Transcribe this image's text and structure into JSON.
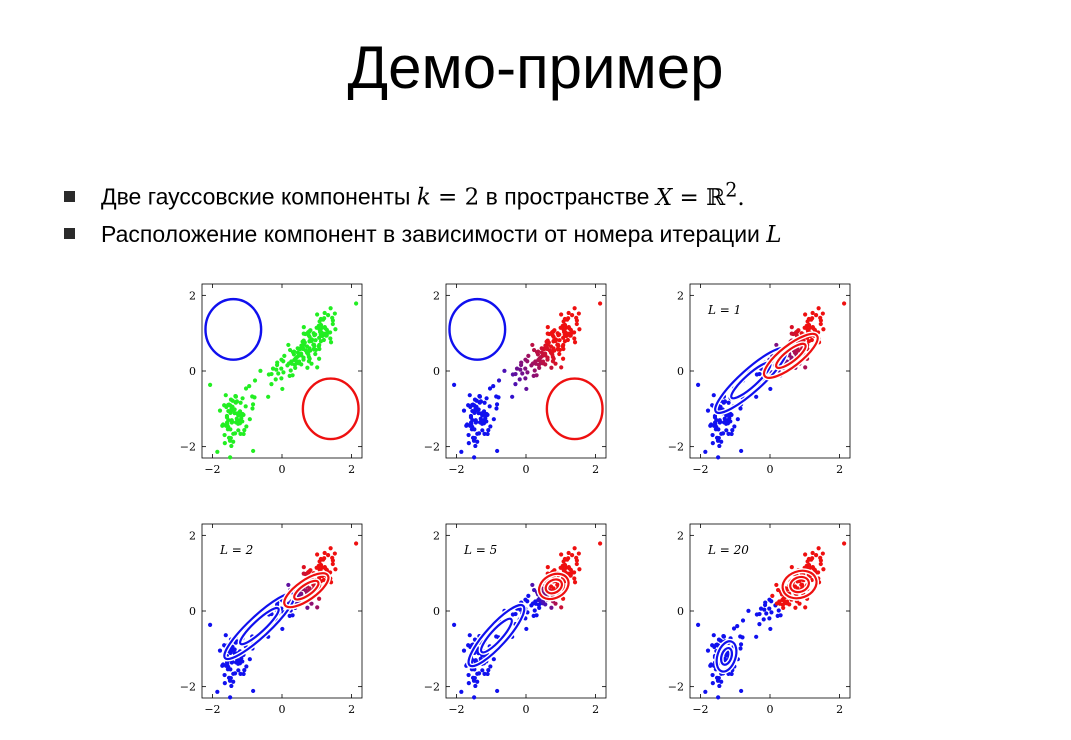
{
  "slide": {
    "title": "Демо-пример",
    "bullets": [
      {
        "text": "Две гауссовские компоненты ",
        "k_var": "k",
        "k_eq": " = 2",
        "mid": " в пространстве ",
        "x_var": "X",
        "x_eq": " = ℝ",
        "sup": "2",
        "end": "."
      },
      {
        "text": "Расположение компонент в зависимости от номера итерации ",
        "var": "L"
      }
    ]
  },
  "chart_data": {
    "type": "scatter",
    "xlim": [
      -2.3,
      2.3
    ],
    "ylim": [
      -2.3,
      2.3
    ],
    "x_ticks": [
      "−2",
      "0",
      "2"
    ],
    "y_ticks": [
      "2",
      "0",
      "−2"
    ],
    "grid": false,
    "colors": {
      "blue": "#1010ee",
      "red": "#ee1010",
      "green": "#22ee22"
    },
    "panels": [
      {
        "label": "",
        "point_mode": "green",
        "components": [
          {
            "color": "#1010ee",
            "cx": -1.4,
            "cy": 1.1,
            "rx": 0.8,
            "ry": 0.8,
            "angle": 0,
            "rings": 1
          },
          {
            "color": "#ee1010",
            "cx": 1.4,
            "cy": -1.0,
            "rx": 0.8,
            "ry": 0.8,
            "angle": 0,
            "rings": 1
          }
        ]
      },
      {
        "label": "",
        "point_mode": "soft_initial",
        "components": [
          {
            "color": "#1010ee",
            "cx": -1.4,
            "cy": 1.1,
            "rx": 0.8,
            "ry": 0.8,
            "angle": 0,
            "rings": 1
          },
          {
            "color": "#ee1010",
            "cx": 1.4,
            "cy": -1.0,
            "rx": 0.8,
            "ry": 0.8,
            "angle": 0,
            "rings": 1
          }
        ]
      },
      {
        "label": "L = 1",
        "point_mode": "soft_1",
        "components": [
          {
            "color": "#1010ee",
            "cx": -0.55,
            "cy": -0.25,
            "rx": 1.35,
            "ry": 0.32,
            "angle": 42,
            "rings": 2
          },
          {
            "color": "#ee1010",
            "cx": 0.6,
            "cy": 0.4,
            "rx": 0.95,
            "ry": 0.3,
            "angle": 38,
            "rings": 2
          }
        ]
      },
      {
        "label": "L = 2",
        "point_mode": "soft_2",
        "components": [
          {
            "color": "#1010ee",
            "cx": -0.65,
            "cy": -0.4,
            "rx": 1.35,
            "ry": 0.3,
            "angle": 43,
            "rings": 2
          },
          {
            "color": "#ee1010",
            "cx": 0.7,
            "cy": 0.55,
            "rx": 0.75,
            "ry": 0.28,
            "angle": 35,
            "rings": 2
          }
        ]
      },
      {
        "label": "L = 5",
        "point_mode": "soft_5",
        "components": [
          {
            "color": "#1010ee",
            "cx": -0.85,
            "cy": -0.65,
            "rx": 1.15,
            "ry": 0.3,
            "angle": 48,
            "rings": 2
          },
          {
            "color": "#ee1010",
            "cx": 0.8,
            "cy": 0.65,
            "rx": 0.45,
            "ry": 0.33,
            "angle": 30,
            "rings": 2
          }
        ]
      },
      {
        "label": "L = 20",
        "point_mode": "hard",
        "components": [
          {
            "color": "#1010ee",
            "cx": -1.25,
            "cy": -1.2,
            "rx": 0.45,
            "ry": 0.26,
            "angle": 72,
            "rings": 2
          },
          {
            "color": "#ee1010",
            "cx": 0.85,
            "cy": 0.7,
            "rx": 0.5,
            "ry": 0.38,
            "angle": 20,
            "rings": 2
          }
        ]
      }
    ]
  }
}
